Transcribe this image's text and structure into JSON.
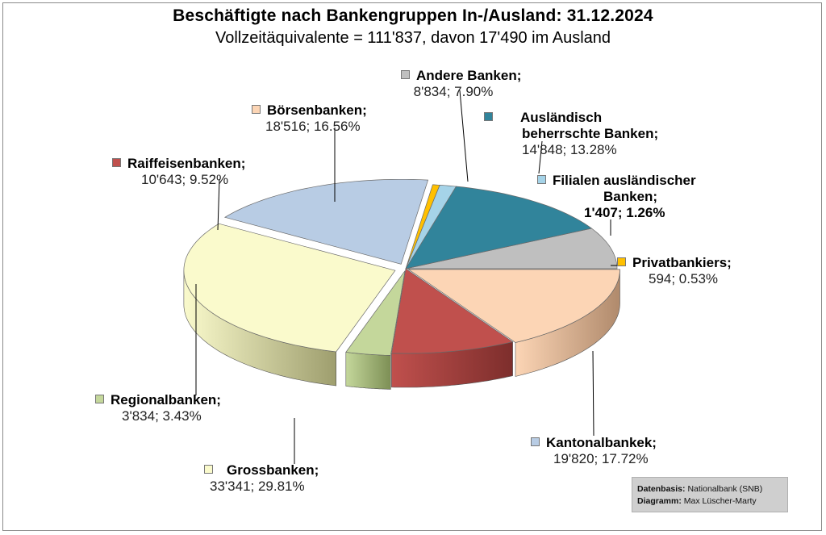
{
  "chart_data": {
    "type": "pie",
    "title": "Beschäftigte nach Bankengruppen In-/Ausland: 31.12.2024",
    "subtitle": "Vollzeitäquivalente = 111'837, davon 17'490 im Ausland",
    "slices": [
      {
        "name": "Andere Banken;",
        "value": 8834,
        "value_label": "8'834; 7.90%",
        "percent": 7.9,
        "color": "#bfbfbf",
        "side": "#8c8c8c"
      },
      {
        "name": "Ausländisch beherrschte Banken;",
        "name_lines": [
          "Ausländisch",
          "beherrschte Banken;"
        ],
        "value": 14848,
        "value_label": "14'848; 13.28%",
        "percent": 13.28,
        "color": "#31849b",
        "side": "#1f5566"
      },
      {
        "name": "Filialen ausländischer Banken;",
        "name_lines": [
          "Filialen ausländischer",
          "Banken;"
        ],
        "value": 1407,
        "value_label": "1'407; 1.26%",
        "percent": 1.26,
        "color": "#a5d3e8",
        "side": "#6c9cb0",
        "emphasis": true
      },
      {
        "name": "Privatbankiers;",
        "value": 594,
        "value_label": "594; 0.53%",
        "percent": 0.53,
        "color": "#ffc000",
        "side": "#b08400"
      },
      {
        "name": "Kantonalbankek;",
        "value": 19820,
        "value_label": "19'820; 17.72%",
        "percent": 17.72,
        "color": "#b8cce4",
        "side": "#4a5563"
      },
      {
        "name": "Grossbanken;",
        "value": 33341,
        "value_label": "33'341; 29.81%",
        "percent": 29.81,
        "color": "#fafacc",
        "side": "#9e9e6e"
      },
      {
        "name": "Regionalbanken;",
        "value": 3834,
        "value_label": "3'834; 3.43%",
        "percent": 3.43,
        "color": "#c4d79b",
        "side": "#7d8f55"
      },
      {
        "name": "Raiffeisenbanken;",
        "value": 10643,
        "value_label": "10'643; 9.52%",
        "percent": 9.52,
        "color": "#c0504d",
        "side": "#7d2e2c"
      },
      {
        "name": "Börsenbanken;",
        "value": 18516,
        "value_label": "18'516; 16.56%",
        "percent": 16.56,
        "color": "#fcd5b5",
        "side": "#b08a6c"
      }
    ]
  },
  "source": {
    "label1": "Datenbasis:",
    "text1": "Nationalbank (SNB)",
    "label2": "Diagramm:",
    "text2": "Max Lüscher-Marty"
  }
}
